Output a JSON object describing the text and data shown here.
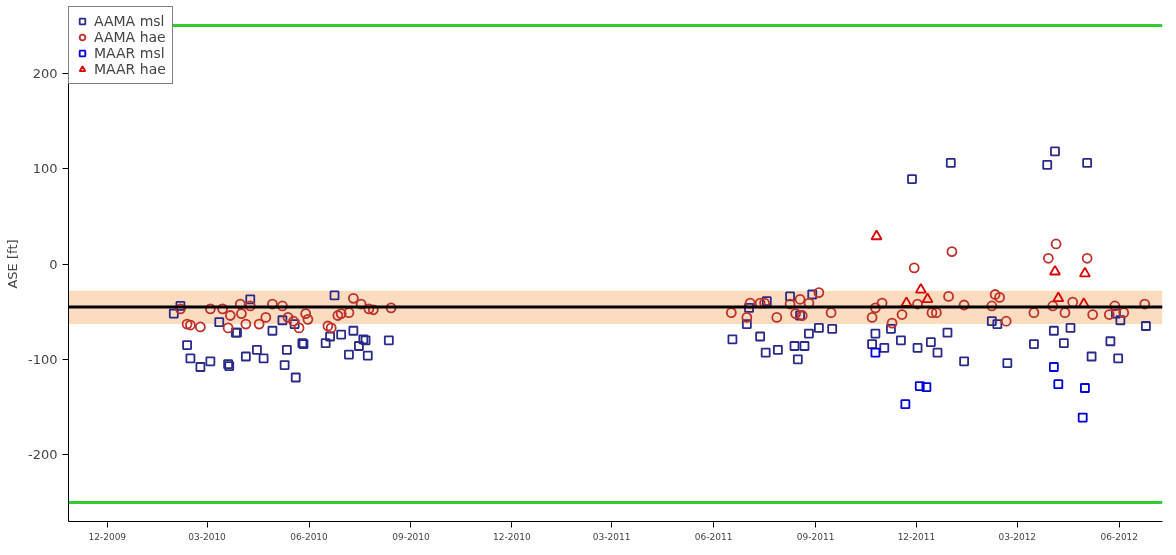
{
  "chart_data": {
    "type": "scatter",
    "ylabel": "ASE [ft]",
    "xlim": [
      "2009-10-27",
      "2012-07-10"
    ],
    "ylim": [
      -270,
      270
    ],
    "xticks": [
      {
        "value": "2009-12-01",
        "label": "12-2009"
      },
      {
        "value": "2010-03-01",
        "label": "03-2010"
      },
      {
        "value": "2010-06-01",
        "label": "06-2010"
      },
      {
        "value": "2010-09-01",
        "label": "09-2010"
      },
      {
        "value": "2010-12-01",
        "label": "12-2010"
      },
      {
        "value": "2011-03-01",
        "label": "03-2011"
      },
      {
        "value": "2011-06-01",
        "label": "06-2011"
      },
      {
        "value": "2011-09-01",
        "label": "09-2011"
      },
      {
        "value": "2011-12-01",
        "label": "12-2011"
      },
      {
        "value": "2012-03-01",
        "label": "03-2012"
      },
      {
        "value": "2012-06-01",
        "label": "06-2012"
      }
    ],
    "yticks": [
      -200,
      -100,
      0,
      100,
      200
    ],
    "grid": false,
    "legend": "top left",
    "ref_lines": [
      {
        "axis": "y",
        "value": 250,
        "color": "#33cc33"
      },
      {
        "axis": "y",
        "value": -250,
        "color": "#33cc33"
      },
      {
        "axis": "y",
        "value": -45,
        "color": "#000000"
      }
    ],
    "bands": [
      {
        "axis": "y",
        "from": -63,
        "to": -28,
        "color": "#fbdcbf"
      }
    ],
    "series": [
      {
        "name": "AAMA msl",
        "color": "#2a2a8a",
        "marker": "square",
        "x": [
          "2010-02-05",
          "2010-01-30",
          "2010-04-09",
          "2010-06-24",
          "2010-03-12",
          "2010-05-08",
          "2010-05-19",
          "2010-03-27",
          "2010-03-28",
          "2010-04-29",
          "2010-02-11",
          "2010-02-14",
          "2010-02-23",
          "2010-03-04",
          "2010-03-20",
          "2010-03-21",
          "2010-04-05",
          "2010-04-15",
          "2010-04-21",
          "2010-05-12",
          "2010-05-10",
          "2010-05-20",
          "2010-05-26",
          "2010-05-27",
          "2010-06-16",
          "2010-06-20",
          "2010-06-30",
          "2010-07-11",
          "2010-07-20",
          "2010-07-22",
          "2010-08-12",
          "2010-07-07",
          "2010-07-16",
          "2010-07-24",
          "2011-07-03",
          "2011-07-01",
          "2011-07-19",
          "2011-08-09",
          "2011-08-29",
          "2011-08-18",
          "2011-06-18",
          "2011-07-13",
          "2011-07-18",
          "2011-07-29",
          "2011-08-13",
          "2011-08-22",
          "2011-08-16",
          "2011-08-26",
          "2011-09-04",
          "2011-09-16",
          "2011-10-22",
          "2011-10-25",
          "2011-11-02",
          "2011-11-08",
          "2011-11-17",
          "2011-11-27",
          "2011-12-02",
          "2011-12-14",
          "2011-12-20",
          "2012-01-01",
          "2012-04-04",
          "2012-03-28",
          "2012-05-03",
          "2011-12-29",
          "2012-01-13",
          "2012-02-07",
          "2012-02-12",
          "2012-02-21",
          "2012-03-16",
          "2012-04-03",
          "2012-04-18",
          "2012-04-12",
          "2012-05-07",
          "2012-05-24",
          "2012-05-31",
          "2012-06-02",
          "2012-05-29",
          "2012-06-25"
        ],
        "values": [
          -44,
          -52,
          -37,
          -33,
          -61,
          -59,
          -63,
          -72,
          -72,
          -70,
          -85,
          -99,
          -108,
          -102,
          -105,
          -107,
          -97,
          -90,
          -99,
          -90,
          -106,
          -119,
          -83,
          -84,
          -83,
          -76,
          -74,
          -70,
          -79,
          -80,
          -80,
          -95,
          -86,
          -96,
          -46,
          -63,
          -39,
          -34,
          -32,
          -54,
          -79,
          -76,
          -93,
          -90,
          -86,
          -86,
          -100,
          -73,
          -67,
          -68,
          -84,
          -73,
          -88,
          -68,
          -80,
          89,
          -88,
          -82,
          -93,
          106,
          118,
          104,
          106,
          -72,
          -102,
          -60,
          -63,
          -104,
          -84,
          -70,
          -67,
          -83,
          -97,
          -81,
          -99,
          -59,
          -52,
          -65
        ]
      },
      {
        "name": "AAMA hae",
        "color": "#c0302a",
        "marker": "circle",
        "x": [
          "2010-02-05",
          "2010-02-11",
          "2010-02-14",
          "2010-02-23",
          "2010-03-04",
          "2010-03-15",
          "2010-03-22",
          "2010-03-20",
          "2010-03-31",
          "2010-04-01",
          "2010-04-05",
          "2010-04-09",
          "2010-04-17",
          "2010-04-23",
          "2010-04-29",
          "2010-05-08",
          "2010-05-13",
          "2010-05-18",
          "2010-05-23",
          "2010-05-29",
          "2010-05-31",
          "2010-06-18",
          "2010-06-21",
          "2010-06-27",
          "2010-06-30",
          "2010-07-07",
          "2010-07-11",
          "2010-07-18",
          "2010-07-25",
          "2010-07-29",
          "2010-08-14",
          "2011-06-17",
          "2011-07-04",
          "2011-07-01",
          "2011-07-13",
          "2011-07-17",
          "2011-07-28",
          "2011-08-09",
          "2011-08-14",
          "2011-08-18",
          "2011-08-20",
          "2011-08-26",
          "2011-09-04",
          "2011-09-15",
          "2011-10-22",
          "2011-10-25",
          "2011-10-31",
          "2011-11-09",
          "2011-11-18",
          "2011-11-29",
          "2011-12-02",
          "2011-12-15",
          "2011-12-19",
          "2012-01-02",
          "2012-04-05",
          "2012-03-29",
          "2012-05-03",
          "2011-12-30",
          "2012-01-13",
          "2012-02-07",
          "2012-02-10",
          "2012-02-14",
          "2012-02-20",
          "2012-03-16",
          "2012-04-02",
          "2012-04-13",
          "2012-04-20",
          "2012-05-08",
          "2012-05-23",
          "2012-05-28",
          "2012-06-05",
          "2012-06-24"
        ],
        "values": [
          -47,
          -63,
          -64,
          -66,
          -47,
          -47,
          -54,
          -67,
          -42,
          -52,
          -63,
          -44,
          -63,
          -56,
          -42,
          -44,
          -56,
          -60,
          -67,
          -52,
          -58,
          -65,
          -67,
          -54,
          -52,
          -51,
          -36,
          -42,
          -47,
          -48,
          -46,
          -51,
          -41,
          -56,
          -41,
          -41,
          -56,
          -42,
          -52,
          -37,
          -54,
          -41,
          -30,
          -51,
          -56,
          -46,
          -41,
          -62,
          -53,
          -4,
          -42,
          -51,
          -51,
          13,
          21,
          6,
          6,
          -34,
          -43,
          -44,
          -32,
          -35,
          -60,
          -51,
          -44,
          -51,
          -40,
          -53,
          -53,
          -44,
          -51,
          -42
        ]
      },
      {
        "name": "MAAR msl",
        "color": "#0000dd",
        "marker": "square",
        "x": [
          "2011-10-25",
          "2011-12-04",
          "2011-12-10",
          "2011-11-21",
          "2012-04-03",
          "2012-04-07",
          "2012-05-01",
          "2012-04-29"
        ],
        "values": [
          -93,
          -128,
          -129,
          -147,
          -108,
          -126,
          -130,
          -161
        ]
      },
      {
        "name": "MAAR hae",
        "color": "#dd0000",
        "marker": "triangle",
        "x": [
          "2011-10-26",
          "2011-12-05",
          "2011-12-11",
          "2011-11-22",
          "2012-04-04",
          "2012-05-01",
          "2012-04-07",
          "2012-04-30"
        ],
        "values": [
          29,
          -27,
          -37,
          -41,
          -8,
          -10,
          -36,
          -42
        ]
      }
    ]
  }
}
